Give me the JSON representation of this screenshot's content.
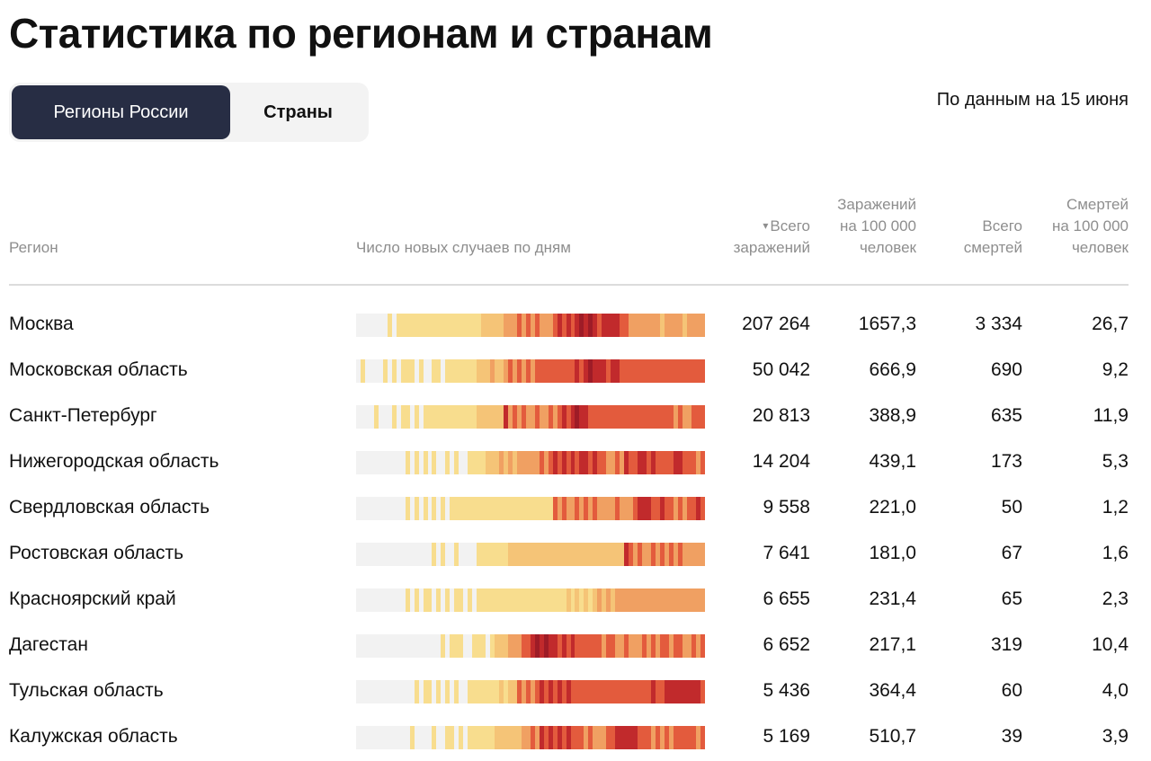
{
  "page": {
    "title": "Статистика по регионам и странам"
  },
  "tabs": [
    {
      "label": "Регионы России",
      "active": true
    },
    {
      "label": "Страны",
      "active": false
    }
  ],
  "as_of": "По данным на 15 июня",
  "table": {
    "headers": {
      "region": "Регион",
      "sparkline": "Число новых случаев по дням",
      "sort_icon": "▾",
      "total_cases": [
        "Всего",
        "заражений"
      ],
      "cases_per_100k": [
        "Заражений",
        "на 100 000",
        "человек"
      ],
      "total_deaths": [
        "Всего",
        "смертей"
      ],
      "deaths_per_100k": [
        "Смертей",
        "на 100 000",
        "человек"
      ]
    },
    "heat_palette": [
      "#f2f2f2",
      "#f8dd8e",
      "#f5c477",
      "#f0a062",
      "#e35b3d",
      "#c12a2c",
      "#9e1c27"
    ],
    "rows": [
      {
        "region": "Москва",
        "total_cases": "207 264",
        "cases_per_100k": "1657,3",
        "total_deaths": "3 334",
        "deaths_per_100k": "26,7",
        "heat": "000000010111111111111111111122222333434343334545456565455554433333332333323333"
      },
      {
        "region": "Московская область",
        "total_cases": "50 042",
        "cases_per_100k": "666,9",
        "total_deaths": "690",
        "deaths_per_100k": "9,2",
        "heat": "010000101011101001101111111222322343434344444444454565554554444444444444444444"
      },
      {
        "region": "Санкт-Петербург",
        "total_cases": "20 813",
        "cases_per_100k": "388,9",
        "total_deaths": "635",
        "deaths_per_100k": "11,9",
        "heat": "000010001011010111111111111222222534343343343454565544444444444444444443433444"
      },
      {
        "region": "Нижегородская область",
        "total_cases": "14 204",
        "cases_per_100k": "439,1",
        "total_deaths": "173",
        "deaths_per_100k": "5,3",
        "heat": "000000000001010101001010011112223232333334345454545545443343544554544445544434"
      },
      {
        "region": "Свердловская область",
        "total_cases": "9 558",
        "cases_per_100k": "221,0",
        "total_deaths": "50",
        "deaths_per_100k": "1,2",
        "heat": "000000000001010101010111111111111111111111114343343434333343334555445443434454"
      },
      {
        "region": "Ростовская область",
        "total_cases": "7 641",
        "cases_per_100k": "181,0",
        "total_deaths": "67",
        "deaths_per_100k": "1,6",
        "heat": "000000000000000001010010000111111122222222222222222222222222543433434343433333"
      },
      {
        "region": "Красноярский край",
        "total_cases": "6 655",
        "cases_per_100k": "231,4",
        "total_deaths": "65",
        "deaths_per_100k": "2,3",
        "heat": "000000000001010110101011010111111111111111111112121212323233333333333333333333"
      },
      {
        "region": "Дагестан",
        "total_cases": "6 652",
        "cases_per_100k": "217,1",
        "total_deaths": "319",
        "deaths_per_100k": "10,4",
        "heat": "000000000000000000010111001110122233344565655454544444434433433343434434433434"
      },
      {
        "region": "Тульская область",
        "total_cases": "5 436",
        "cases_per_100k": "364,4",
        "total_deaths": "60",
        "deaths_per_100k": "4,0",
        "heat": "000000000000010110101010011111112122434345454545444444444444444444544555555554"
      },
      {
        "region": "Калужская область",
        "total_cases": "5 169",
        "cases_per_100k": "510,7",
        "total_deaths": "39",
        "deaths_per_100k": "3,9",
        "heat": "000000000000100001001101011111122222233435454545444343334455555444343434444434"
      }
    ]
  }
}
